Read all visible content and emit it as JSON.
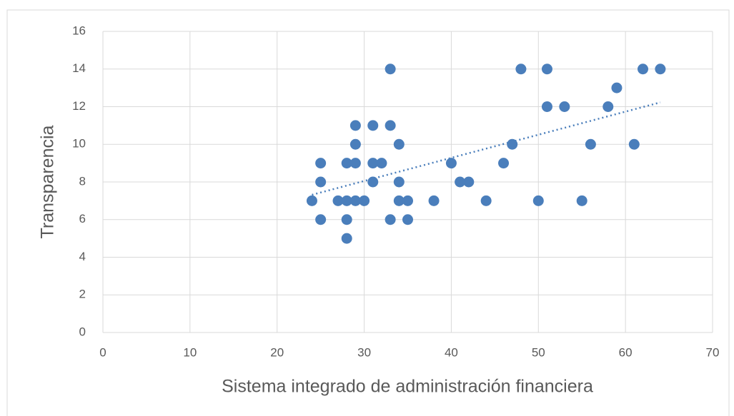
{
  "chart_data": {
    "type": "scatter",
    "x_label": "Sistema integrado de administración financiera",
    "y_label": "Transparencia",
    "color": "#4a7ebb",
    "trendline": true,
    "grid": true,
    "x": [
      24,
      25,
      25,
      25,
      27,
      28,
      28,
      28,
      28,
      29,
      29,
      29,
      29,
      30,
      31,
      31,
      31,
      32,
      33,
      33,
      33,
      34,
      34,
      34,
      35,
      35,
      38,
      40,
      41,
      42,
      44,
      46,
      47,
      48,
      50,
      51,
      51,
      53,
      55,
      56,
      58,
      59,
      61,
      62,
      64
    ],
    "values": [
      7,
      9,
      8,
      6,
      7,
      7,
      9,
      6,
      5,
      11,
      10,
      9,
      7,
      7,
      11,
      9,
      8,
      9,
      14,
      11,
      6,
      10,
      8,
      7,
      7,
      6,
      7,
      9,
      8,
      8,
      7,
      9,
      10,
      14,
      7,
      14,
      12,
      12,
      7,
      10,
      12,
      13,
      10,
      14,
      14
    ],
    "xlim": [
      0,
      70
    ],
    "xticks": [
      0,
      10,
      20,
      30,
      40,
      50,
      60,
      70
    ],
    "ylim": [
      0,
      16
    ],
    "yticks": [
      0,
      2,
      4,
      6,
      8,
      10,
      12,
      14,
      16
    ]
  }
}
